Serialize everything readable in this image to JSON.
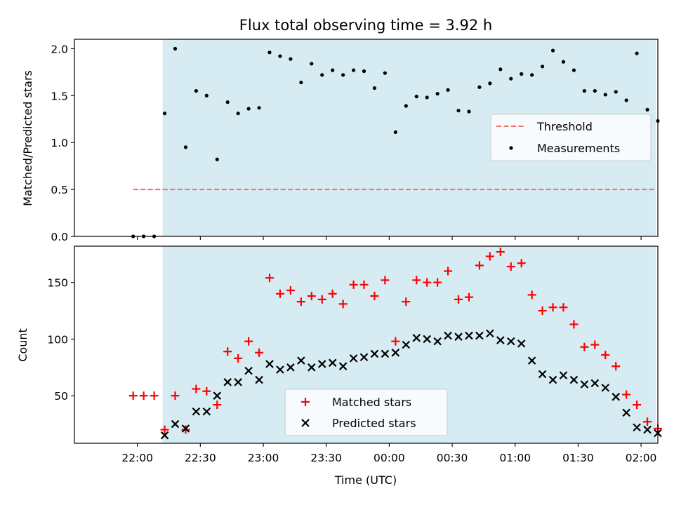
{
  "chart_data": {
    "title": "Flux total observing time = 3.92 h",
    "x_axis": {
      "label": "Time (UTC)",
      "ticks": [
        "22:00",
        "22:30",
        "23:00",
        "23:30",
        "00:00",
        "00:30",
        "01:00",
        "01:30",
        "02:00"
      ],
      "range_min": [
        -30,
        248
      ]
    },
    "shaded_span_min": [
      12,
      247
    ],
    "colors": {
      "shade": "#add8e6",
      "threshold": "#f07070",
      "matched": "#ff0000",
      "predicted": "#000000",
      "measurements": "#000000"
    },
    "panels": [
      {
        "type": "scatter",
        "ylabel": "Matched/Predicted stars",
        "ylim": [
          0,
          2.1
        ],
        "yticks": [
          "0.0",
          "0.5",
          "1.0",
          "1.5",
          "2.0"
        ],
        "legend": {
          "position": "center-right",
          "entries": [
            {
              "label": "Threshold",
              "style": "dashed-line"
            },
            {
              "label": "Measurements",
              "style": "dot"
            }
          ]
        },
        "threshold": {
          "name": "Threshold",
          "y": 0.5,
          "x_range_min": [
            -2,
            247
          ]
        },
        "series": [
          {
            "name": "Measurements",
            "x_min": [
              -2,
              3,
              8,
              13,
              18,
              23,
              28,
              33,
              38,
              43,
              48,
              53,
              58,
              63,
              68,
              73,
              78,
              83,
              88,
              93,
              98,
              103,
              108,
              113,
              118,
              123,
              128,
              133,
              138,
              143,
              148,
              153,
              158,
              163,
              168,
              173,
              178,
              183,
              188,
              193,
              198,
              203,
              208,
              213,
              218,
              223,
              228,
              233,
              238,
              243,
              248
            ],
            "y": [
              0.0,
              0.0,
              0.0,
              1.31,
              2.0,
              0.95,
              1.55,
              1.5,
              0.82,
              1.43,
              1.31,
              1.36,
              1.37,
              1.96,
              1.92,
              1.89,
              1.64,
              1.84,
              1.72,
              1.77,
              1.72,
              1.77,
              1.76,
              1.58,
              1.74,
              1.11,
              1.39,
              1.49,
              1.48,
              1.52,
              1.56,
              1.34,
              1.33,
              1.59,
              1.63,
              1.78,
              1.68,
              1.73,
              1.72,
              1.81,
              1.98,
              1.86,
              1.77,
              1.55,
              1.55,
              1.51,
              1.54,
              1.45,
              1.95,
              1.35,
              1.23
            ]
          }
        ]
      },
      {
        "type": "scatter",
        "ylabel": "Count",
        "ylim": [
          8,
          182
        ],
        "yticks": [
          "50",
          "100",
          "150"
        ],
        "legend": {
          "position": "bottom-center",
          "entries": [
            {
              "label": "Matched stars",
              "style": "plus"
            },
            {
              "label": "Predicted stars",
              "style": "cross"
            }
          ]
        },
        "series": [
          {
            "name": "Matched stars",
            "marker": "plus",
            "x_min": [
              -2,
              3,
              8,
              13,
              18,
              23,
              28,
              33,
              38,
              43,
              48,
              53,
              58,
              63,
              68,
              73,
              78,
              83,
              88,
              93,
              98,
              103,
              108,
              113,
              118,
              123,
              128,
              133,
              138,
              143,
              148,
              153,
              158,
              163,
              168,
              173,
              178,
              183,
              188,
              193,
              198,
              203,
              208,
              213,
              218,
              223,
              228,
              233,
              238,
              243,
              248
            ],
            "y": [
              50,
              50,
              50,
              20,
              50,
              20,
              56,
              54,
              42,
              89,
              83,
              98,
              88,
              154,
              140,
              143,
              133,
              138,
              135,
              140,
              131,
              148,
              148,
              138,
              152,
              98,
              133,
              152,
              150,
              150,
              160,
              135,
              137,
              165,
              173,
              177,
              164,
              167,
              139,
              125,
              128,
              128,
              113,
              93,
              95,
              86,
              76,
              51,
              42,
              27,
              21
            ]
          },
          {
            "name": "Predicted stars",
            "marker": "cross",
            "x_min": [
              13,
              18,
              23,
              28,
              33,
              38,
              43,
              48,
              53,
              58,
              63,
              68,
              73,
              78,
              83,
              88,
              93,
              98,
              103,
              108,
              113,
              118,
              123,
              128,
              133,
              138,
              143,
              148,
              153,
              158,
              163,
              168,
              173,
              178,
              183,
              188,
              193,
              198,
              203,
              208,
              213,
              218,
              223,
              228,
              233,
              238,
              243,
              248
            ],
            "y": [
              15,
              25,
              21,
              36,
              36,
              50,
              62,
              62,
              72,
              64,
              78,
              73,
              75,
              81,
              75,
              78,
              79,
              76,
              83,
              84,
              87,
              87,
              88,
              95,
              101,
              100,
              98,
              103,
              102,
              103,
              103,
              105,
              99,
              98,
              96,
              81,
              69,
              64,
              68,
              64,
              60,
              61,
              57,
              49,
              35,
              22,
              20,
              17
            ]
          }
        ]
      }
    ]
  }
}
